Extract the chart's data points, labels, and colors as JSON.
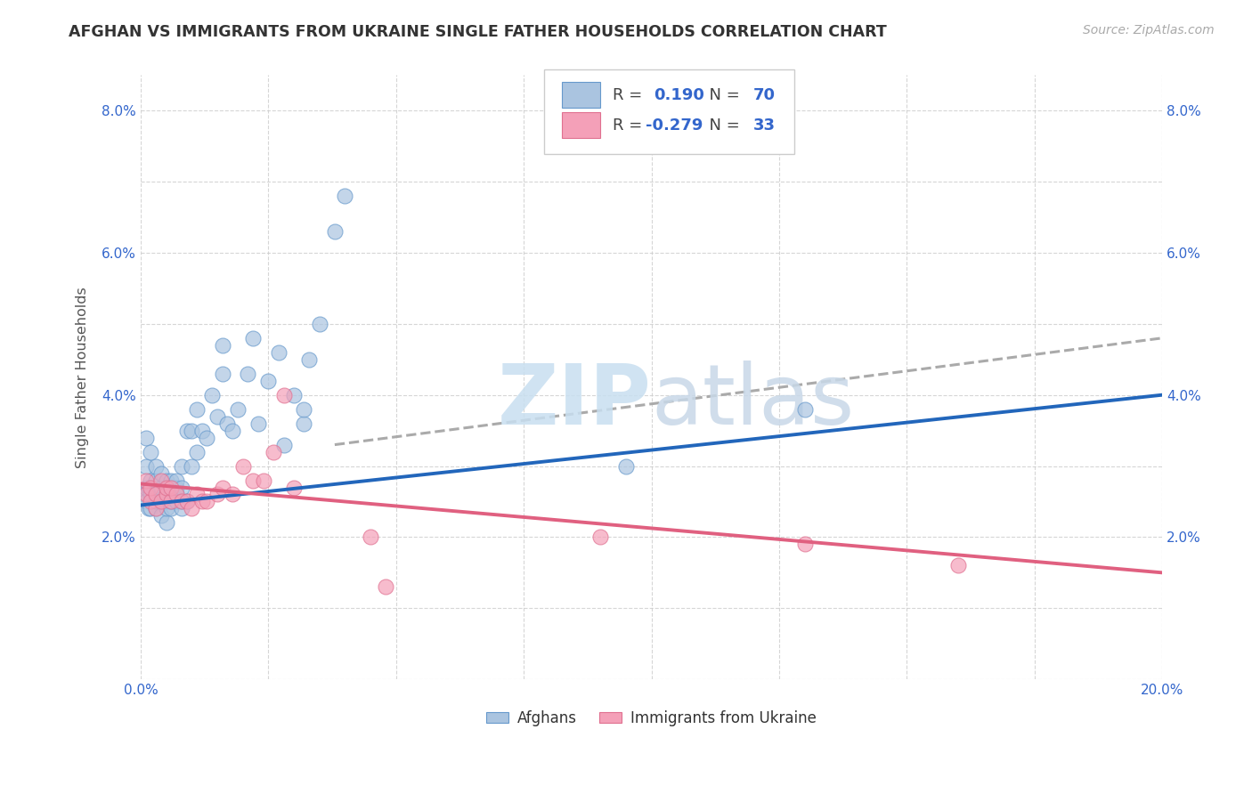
{
  "title": "AFGHAN VS IMMIGRANTS FROM UKRAINE SINGLE FATHER HOUSEHOLDS CORRELATION CHART",
  "source": "Source: ZipAtlas.com",
  "ylabel": "Single Father Households",
  "xlim": [
    0.0,
    0.2
  ],
  "ylim": [
    0.0,
    0.085
  ],
  "xticks": [
    0.0,
    0.025,
    0.05,
    0.075,
    0.1,
    0.125,
    0.15,
    0.175,
    0.2
  ],
  "xticklabels": [
    "0.0%",
    "",
    "",
    "",
    "",
    "",
    "",
    "",
    "20.0%"
  ],
  "yticks": [
    0.0,
    0.01,
    0.02,
    0.03,
    0.04,
    0.05,
    0.06,
    0.07,
    0.08
  ],
  "yticklabels": [
    "",
    "",
    "2.0%",
    "",
    "4.0%",
    "",
    "6.0%",
    "",
    "8.0%"
  ],
  "afghan_color": "#aac4e0",
  "afghan_edge_color": "#6699cc",
  "ukraine_color": "#f4a0b8",
  "ukraine_edge_color": "#e07090",
  "afghan_line_color": "#2266bb",
  "ukraine_line_color": "#e06080",
  "legend_r_afghan": "0.190",
  "legend_n_afghan": "70",
  "legend_r_ukraine": "-0.279",
  "legend_n_ukraine": "33",
  "afghan_points_x": [
    0.0005,
    0.001,
    0.001,
    0.001,
    0.001,
    0.0015,
    0.0015,
    0.002,
    0.002,
    0.002,
    0.002,
    0.003,
    0.003,
    0.003,
    0.003,
    0.003,
    0.004,
    0.004,
    0.004,
    0.004,
    0.004,
    0.005,
    0.005,
    0.005,
    0.005,
    0.005,
    0.005,
    0.006,
    0.006,
    0.006,
    0.006,
    0.006,
    0.007,
    0.007,
    0.007,
    0.007,
    0.008,
    0.008,
    0.008,
    0.008,
    0.009,
    0.009,
    0.01,
    0.01,
    0.011,
    0.011,
    0.012,
    0.013,
    0.014,
    0.015,
    0.016,
    0.016,
    0.017,
    0.018,
    0.019,
    0.021,
    0.022,
    0.023,
    0.025,
    0.027,
    0.028,
    0.03,
    0.032,
    0.032,
    0.033,
    0.035,
    0.038,
    0.04,
    0.095,
    0.13
  ],
  "afghan_points_y": [
    0.026,
    0.025,
    0.027,
    0.03,
    0.034,
    0.024,
    0.027,
    0.024,
    0.026,
    0.028,
    0.032,
    0.024,
    0.025,
    0.026,
    0.028,
    0.03,
    0.023,
    0.025,
    0.026,
    0.027,
    0.029,
    0.022,
    0.024,
    0.025,
    0.026,
    0.027,
    0.028,
    0.024,
    0.025,
    0.026,
    0.027,
    0.028,
    0.025,
    0.026,
    0.027,
    0.028,
    0.024,
    0.025,
    0.027,
    0.03,
    0.025,
    0.035,
    0.03,
    0.035,
    0.032,
    0.038,
    0.035,
    0.034,
    0.04,
    0.037,
    0.043,
    0.047,
    0.036,
    0.035,
    0.038,
    0.043,
    0.048,
    0.036,
    0.042,
    0.046,
    0.033,
    0.04,
    0.036,
    0.038,
    0.045,
    0.05,
    0.063,
    0.068,
    0.03,
    0.038
  ],
  "ukraine_points_x": [
    0.001,
    0.001,
    0.002,
    0.002,
    0.003,
    0.003,
    0.004,
    0.004,
    0.005,
    0.005,
    0.006,
    0.006,
    0.007,
    0.008,
    0.009,
    0.01,
    0.011,
    0.012,
    0.013,
    0.015,
    0.016,
    0.018,
    0.02,
    0.022,
    0.024,
    0.026,
    0.028,
    0.03,
    0.045,
    0.048,
    0.09,
    0.13,
    0.16
  ],
  "ukraine_points_y": [
    0.026,
    0.028,
    0.025,
    0.027,
    0.024,
    0.026,
    0.025,
    0.028,
    0.026,
    0.027,
    0.025,
    0.027,
    0.026,
    0.025,
    0.025,
    0.024,
    0.026,
    0.025,
    0.025,
    0.026,
    0.027,
    0.026,
    0.03,
    0.028,
    0.028,
    0.032,
    0.04,
    0.027,
    0.02,
    0.013,
    0.02,
    0.019,
    0.016
  ],
  "afghan_line_x": [
    0.0,
    0.2
  ],
  "afghan_line_y": [
    0.0245,
    0.04
  ],
  "ukraine_line_x": [
    0.0,
    0.2
  ],
  "ukraine_line_y": [
    0.0275,
    0.015
  ],
  "dashed_line_x": [
    0.038,
    0.2
  ],
  "dashed_line_y": [
    0.033,
    0.048
  ]
}
